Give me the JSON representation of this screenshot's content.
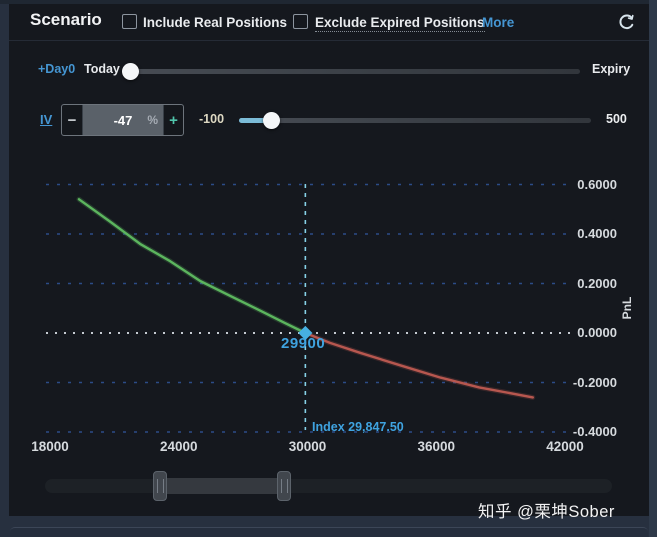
{
  "header": {
    "title": "Scenario",
    "include_checkbox_label": "Include Real Positions",
    "exclude_checkbox_label": "Exclude Expired Positions",
    "more_label": "More"
  },
  "day_row": {
    "day_offset_label": "+Day0",
    "start_label": "Today",
    "end_label": "Expiry",
    "slider": {
      "value": "Today",
      "position_pct": 0
    }
  },
  "iv_row": {
    "label": "IV",
    "stepper": {
      "minus": "−",
      "value": "-47",
      "unit": "%",
      "plus": "+"
    },
    "slider": {
      "min_label": "-100",
      "max_label": "500",
      "min": -100,
      "max": 500,
      "value": -47
    }
  },
  "chart_data": {
    "type": "line",
    "title": "",
    "xlabel": "",
    "ylabel": "PnL",
    "x_ticks": [
      18000,
      24000,
      30000,
      36000,
      42000
    ],
    "x_tick_labels": [
      "18000",
      "24000",
      "30000",
      "36000",
      "42000"
    ],
    "y_ticks": [
      0.6,
      0.4,
      0.2,
      0,
      -0.2,
      -0.4
    ],
    "y_tick_labels": [
      "0.6000",
      "0.4000",
      "0.2000",
      "0.0000",
      "-0.2000",
      "-0.4000"
    ],
    "xlim": [
      18000,
      42300
    ],
    "ylim": [
      -0.45,
      0.66
    ],
    "grid": "dashed-horizontal",
    "legend": "none",
    "series": [
      {
        "name": "PnL",
        "x": [
          19350,
          20800,
          22200,
          23600,
          25000,
          26400,
          27800,
          28950,
          29900,
          31050,
          32450,
          34300,
          36200,
          38000,
          40500
        ],
        "y": [
          0.54,
          0.45,
          0.36,
          0.29,
          0.21,
          0.15,
          0.09,
          0.04,
          0,
          -0.04,
          -0.08,
          -0.13,
          -0.18,
          -0.22,
          -0.26
        ]
      }
    ],
    "crosshair": {
      "x": 29900,
      "x_label": "29900",
      "y": 0,
      "annotation": "Index 29,847.50"
    },
    "colors": {
      "positive": "#5cb55e",
      "negative": "#b7574f",
      "grid": "#2c4c88",
      "zero_grid": "#c6cbd2",
      "crosshair": "#86d2e8",
      "marker": "#46b0e2",
      "label_blue": "#3fa3e0"
    }
  },
  "watermark": "知乎 @栗坤Sober"
}
